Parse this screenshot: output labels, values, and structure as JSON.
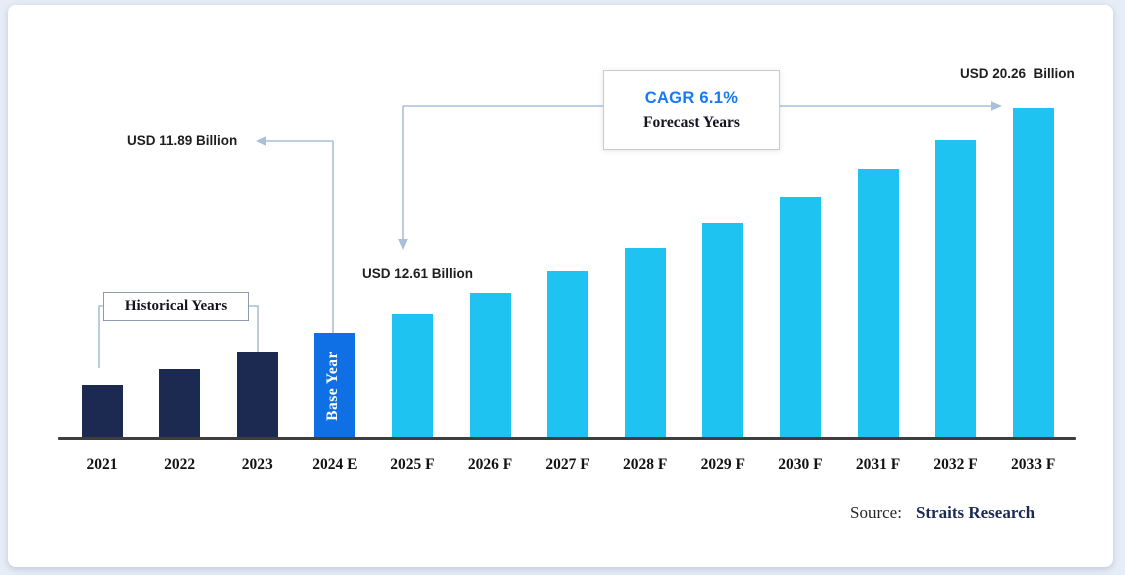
{
  "chart_data": {
    "type": "bar",
    "title": "",
    "unit": "USD Billion",
    "categories": [
      "2021",
      "2022",
      "2023",
      "2024 E",
      "2025 F",
      "2026 F",
      "2027 F",
      "2028 F",
      "2029 F",
      "2030 F",
      "2031 F",
      "2032 F",
      "2033 F"
    ],
    "values": [
      9.96,
      10.56,
      11.21,
      11.89,
      12.61,
      13.38,
      14.2,
      15.06,
      15.98,
      16.96,
      17.99,
      19.09,
      20.26
    ],
    "bar_colors": [
      "#1c2950",
      "#1c2950",
      "#1c2950",
      "#0f70e6",
      "#1fc3f2",
      "#1fc3f2",
      "#1fc3f2",
      "#1fc3f2",
      "#1fc3f2",
      "#1fc3f2",
      "#1fc3f2",
      "#1fc3f2",
      "#1fc3f2"
    ],
    "groups": [
      {
        "name": "Historical Years",
        "categories": [
          "2021",
          "2022",
          "2023"
        ],
        "color": "#1c2950"
      },
      {
        "name": "Base Year",
        "categories": [
          "2024 E"
        ],
        "color": "#0f70e6"
      },
      {
        "name": "Forecast Years",
        "categories": [
          "2025 F",
          "2026 F",
          "2027 F",
          "2028 F",
          "2029 F",
          "2030 F",
          "2031 F",
          "2032 F",
          "2033 F"
        ],
        "color": "#1fc3f2"
      }
    ],
    "labeled_points": [
      {
        "category": "2024 E",
        "label": "USD 11.89 Billion",
        "value": 11.89
      },
      {
        "category": "2025 F",
        "label": "USD 12.61 Billion",
        "value": 12.61
      },
      {
        "category": "2033 F",
        "label": "USD 20.26  Billion",
        "value": 20.26
      }
    ],
    "cagr": "CAGR 6.1%",
    "ylim": [
      8,
      21
    ],
    "grid": false,
    "legend": "none",
    "xlabel": "",
    "ylabel": ""
  },
  "annotations": {
    "historical_box": "Historical Years",
    "base_year_bar": "Base Year",
    "cagr_line1": "CAGR 6.1%",
    "cagr_line2": "Forecast Years",
    "value_2024e": "USD 11.89 Billion",
    "value_2025f": "USD 12.61 Billion",
    "value_2033f": "USD 20.26  Billion"
  },
  "source": {
    "label": "Source:",
    "name": "Straits Research"
  },
  "colors": {
    "background": "#e7edf6",
    "card": "#ffffff",
    "historical_bar": "#1c2950",
    "base_year_bar": "#0f70e6",
    "forecast_bar": "#1fc3f2",
    "axis": "#3e3e3e",
    "leader_lines": "#aabfd8",
    "cagr_text": "#1679f2",
    "source_name": "#1b2a55"
  }
}
